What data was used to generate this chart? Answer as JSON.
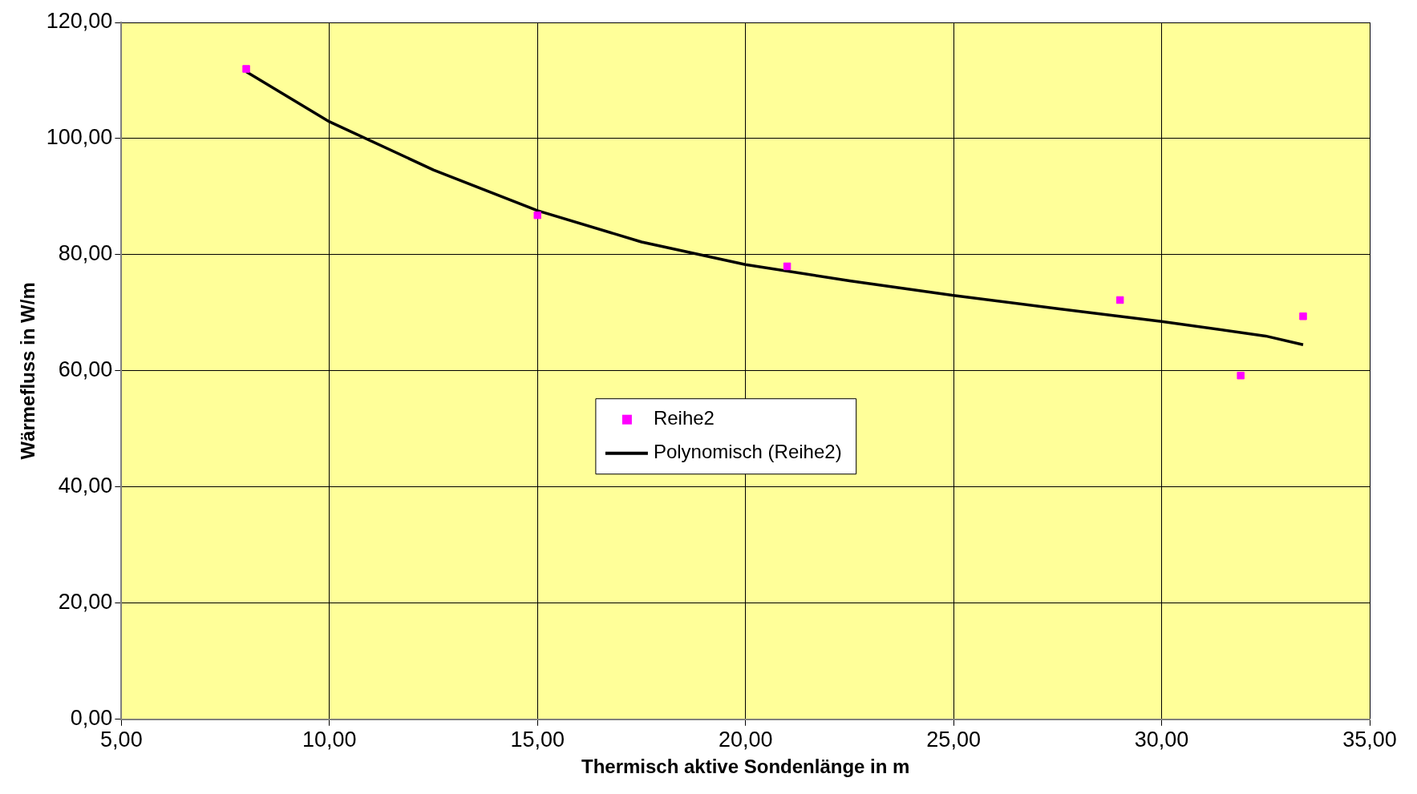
{
  "chart_data": {
    "type": "scatter",
    "xlabel": "Thermisch aktive Sondenlänge in m",
    "ylabel": "Wärmefluss in W/m",
    "xlim": [
      5,
      35
    ],
    "ylim": [
      0,
      120
    ],
    "xticks": [
      {
        "value": 5,
        "label": "5,00"
      },
      {
        "value": 10,
        "label": "10,00"
      },
      {
        "value": 15,
        "label": "15,00"
      },
      {
        "value": 20,
        "label": "20,00"
      },
      {
        "value": 25,
        "label": "25,00"
      },
      {
        "value": 30,
        "label": "30,00"
      },
      {
        "value": 35,
        "label": "35,00"
      }
    ],
    "yticks": [
      {
        "value": 0,
        "label": "0,00"
      },
      {
        "value": 20,
        "label": "20,00"
      },
      {
        "value": 40,
        "label": "40,00"
      },
      {
        "value": 60,
        "label": "60,00"
      },
      {
        "value": 80,
        "label": "80,00"
      },
      {
        "value": 100,
        "label": "100,00"
      },
      {
        "value": 120,
        "label": "120,00"
      }
    ],
    "grid": true,
    "legend": "center",
    "marker": "square",
    "series": [
      {
        "name": "Reihe2",
        "type": "scatter",
        "color": "#ff00ff",
        "x": [
          8,
          15,
          21,
          29,
          31.9,
          33.4
        ],
        "values": [
          112,
          86.8,
          78,
          72.2,
          59.2,
          69.4
        ]
      },
      {
        "name": "Polynomisch (Reihe2)",
        "type": "line",
        "color": "#000000",
        "marker": "none",
        "line_style": "solid",
        "x": [
          8,
          10,
          12.5,
          15,
          17.5,
          20,
          22.5,
          25,
          27.5,
          30,
          32.5,
          33.4
        ],
        "values": [
          111.5,
          102.9,
          94.6,
          87.6,
          82.2,
          78.3,
          75.5,
          73,
          70.7,
          68.5,
          66,
          64.5
        ]
      }
    ]
  }
}
